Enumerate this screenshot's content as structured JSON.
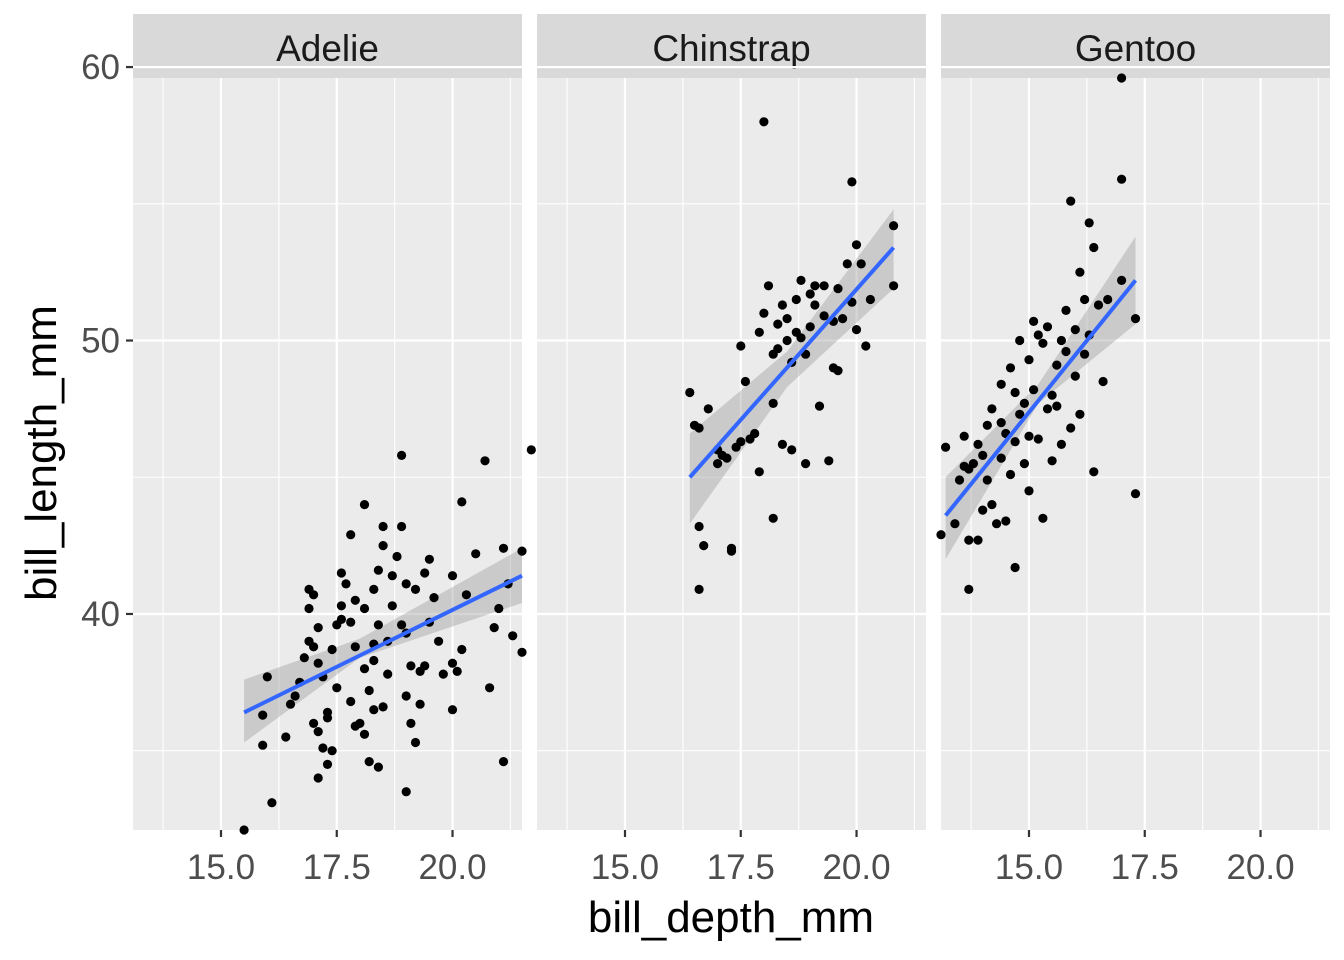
{
  "chart_data": {
    "type": "scatter",
    "xlabel": "bill_depth_mm",
    "ylabel": "bill_length_mm",
    "xlim": [
      13.1,
      21.5
    ],
    "ylim": [
      32.1,
      59.6
    ],
    "x_ticks": [
      "15.0",
      "17.5",
      "20.0"
    ],
    "x_tick_values": [
      15.0,
      17.5,
      20.0
    ],
    "y_ticks": [
      "40",
      "50",
      "60"
    ],
    "y_tick_values": [
      40,
      50,
      60
    ],
    "grid": true,
    "smooth": "lm",
    "colors": {
      "points": "#000000",
      "fit": "#3366FF",
      "band": "#999999",
      "panel": "#EBEBEB",
      "strip": "#D9D9D9"
    },
    "facets": [
      {
        "name": "Adelie",
        "fit": {
          "x": [
            15.5,
            21.5
          ],
          "y": [
            36.4,
            41.4
          ]
        },
        "band": {
          "x": [
            15.5,
            18.0,
            21.5
          ],
          "upper": [
            37.6,
            39.1,
            42.4
          ],
          "lower": [
            35.3,
            38.4,
            40.4
          ]
        },
        "points": [
          [
            15.5,
            32.1
          ],
          [
            16.1,
            33.1
          ],
          [
            15.9,
            35.2
          ],
          [
            16.4,
            35.5
          ],
          [
            15.9,
            36.3
          ],
          [
            16.0,
            37.7
          ],
          [
            16.6,
            37.0
          ],
          [
            16.7,
            37.5
          ],
          [
            16.8,
            38.4
          ],
          [
            16.9,
            39.0
          ],
          [
            16.9,
            40.2
          ],
          [
            17.0,
            40.7
          ],
          [
            16.9,
            40.9
          ],
          [
            17.1,
            39.5
          ],
          [
            17.1,
            38.2
          ],
          [
            17.2,
            37.7
          ],
          [
            17.3,
            36.2
          ],
          [
            17.0,
            36.0
          ],
          [
            17.1,
            35.7
          ],
          [
            17.2,
            35.1
          ],
          [
            17.4,
            35.0
          ],
          [
            17.1,
            34.0
          ],
          [
            17.3,
            34.5
          ],
          [
            17.3,
            36.4
          ],
          [
            17.5,
            37.3
          ],
          [
            17.4,
            38.7
          ],
          [
            17.5,
            39.6
          ],
          [
            17.6,
            40.3
          ],
          [
            17.7,
            41.1
          ],
          [
            17.6,
            41.5
          ],
          [
            17.8,
            42.9
          ],
          [
            17.8,
            39.7
          ],
          [
            17.9,
            38.8
          ],
          [
            17.8,
            36.8
          ],
          [
            18.0,
            36.0
          ],
          [
            17.9,
            35.9
          ],
          [
            18.1,
            35.6
          ],
          [
            18.2,
            34.6
          ],
          [
            18.3,
            36.5
          ],
          [
            18.2,
            37.2
          ],
          [
            18.1,
            38.0
          ],
          [
            18.3,
            38.9
          ],
          [
            18.4,
            39.6
          ],
          [
            18.1,
            40.2
          ],
          [
            18.3,
            40.9
          ],
          [
            18.4,
            41.6
          ],
          [
            18.5,
            42.5
          ],
          [
            18.5,
            43.2
          ],
          [
            18.1,
            44.0
          ],
          [
            18.4,
            34.4
          ],
          [
            18.5,
            36.6
          ],
          [
            18.6,
            37.8
          ],
          [
            18.6,
            39.0
          ],
          [
            18.7,
            40.3
          ],
          [
            18.7,
            41.4
          ],
          [
            18.8,
            42.1
          ],
          [
            18.9,
            43.2
          ],
          [
            18.9,
            45.8
          ],
          [
            19.0,
            41.1
          ],
          [
            19.0,
            39.3
          ],
          [
            19.1,
            38.1
          ],
          [
            19.0,
            37.0
          ],
          [
            19.1,
            36.0
          ],
          [
            19.2,
            35.3
          ],
          [
            19.0,
            33.5
          ],
          [
            19.3,
            36.7
          ],
          [
            19.3,
            37.9
          ],
          [
            19.4,
            38.1
          ],
          [
            19.5,
            39.7
          ],
          [
            19.6,
            40.6
          ],
          [
            19.4,
            41.5
          ],
          [
            19.5,
            42.0
          ],
          [
            19.7,
            39.0
          ],
          [
            19.8,
            37.8
          ],
          [
            20.0,
            36.5
          ],
          [
            20.1,
            37.9
          ],
          [
            20.0,
            38.2
          ],
          [
            20.2,
            38.7
          ],
          [
            20.3,
            40.7
          ],
          [
            20.0,
            41.4
          ],
          [
            20.2,
            44.1
          ],
          [
            20.7,
            45.6
          ],
          [
            20.8,
            37.3
          ],
          [
            20.9,
            39.5
          ],
          [
            21.0,
            40.2
          ],
          [
            21.1,
            42.4
          ],
          [
            21.2,
            41.1
          ],
          [
            21.3,
            39.2
          ],
          [
            21.5,
            38.6
          ],
          [
            21.1,
            34.6
          ],
          [
            21.5,
            42.3
          ],
          [
            21.7,
            46.0
          ],
          [
            16.5,
            36.7
          ],
          [
            17.9,
            40.5
          ],
          [
            18.3,
            38.3
          ],
          [
            19.2,
            40.9
          ],
          [
            17.6,
            39.8
          ],
          [
            18.9,
            39.6
          ],
          [
            20.5,
            42.2
          ],
          [
            17.0,
            38.8
          ]
        ]
      },
      {
        "name": "Chinstrap",
        "fit": {
          "x": [
            16.4,
            20.8
          ],
          "y": [
            45.0,
            53.4
          ]
        },
        "band": {
          "x": [
            16.4,
            18.5,
            20.8
          ],
          "upper": [
            46.6,
            49.6,
            54.8
          ],
          "lower": [
            43.3,
            48.3,
            51.9
          ]
        },
        "points": [
          [
            16.4,
            48.1
          ],
          [
            16.5,
            46.9
          ],
          [
            16.6,
            46.8
          ],
          [
            16.6,
            43.2
          ],
          [
            16.7,
            42.5
          ],
          [
            16.6,
            40.9
          ],
          [
            16.8,
            47.5
          ],
          [
            17.0,
            45.5
          ],
          [
            17.1,
            45.8
          ],
          [
            17.2,
            45.7
          ],
          [
            17.3,
            42.4
          ],
          [
            17.3,
            42.3
          ],
          [
            17.4,
            46.1
          ],
          [
            17.5,
            46.3
          ],
          [
            17.5,
            49.8
          ],
          [
            17.6,
            48.5
          ],
          [
            17.7,
            46.4
          ],
          [
            17.8,
            46.6
          ],
          [
            17.9,
            45.2
          ],
          [
            17.9,
            50.3
          ],
          [
            18.0,
            51.0
          ],
          [
            18.1,
            52.0
          ],
          [
            18.0,
            58.0
          ],
          [
            18.2,
            43.5
          ],
          [
            18.2,
            49.5
          ],
          [
            18.3,
            49.7
          ],
          [
            18.3,
            50.6
          ],
          [
            18.4,
            51.3
          ],
          [
            18.4,
            46.2
          ],
          [
            18.5,
            50.8
          ],
          [
            18.6,
            49.2
          ],
          [
            18.6,
            46.0
          ],
          [
            18.7,
            50.3
          ],
          [
            18.7,
            51.5
          ],
          [
            18.8,
            52.2
          ],
          [
            18.8,
            50.1
          ],
          [
            18.9,
            45.5
          ],
          [
            18.9,
            49.5
          ],
          [
            19.0,
            50.5
          ],
          [
            19.0,
            51.7
          ],
          [
            19.1,
            52.0
          ],
          [
            19.1,
            51.3
          ],
          [
            19.2,
            47.6
          ],
          [
            19.3,
            50.9
          ],
          [
            19.4,
            45.6
          ],
          [
            19.5,
            50.7
          ],
          [
            19.5,
            49.0
          ],
          [
            19.6,
            48.9
          ],
          [
            19.6,
            51.9
          ],
          [
            19.7,
            50.8
          ],
          [
            19.8,
            52.8
          ],
          [
            19.9,
            55.8
          ],
          [
            19.9,
            51.4
          ],
          [
            20.0,
            53.5
          ],
          [
            20.0,
            50.4
          ],
          [
            20.1,
            52.8
          ],
          [
            20.2,
            49.8
          ],
          [
            20.3,
            51.5
          ],
          [
            20.8,
            52.0
          ],
          [
            20.8,
            54.2
          ],
          [
            18.5,
            50.0
          ],
          [
            17.0,
            46.0
          ],
          [
            19.3,
            52.0
          ],
          [
            18.2,
            47.7
          ]
        ]
      },
      {
        "name": "Gentoo",
        "fit": {
          "x": [
            13.2,
            17.3
          ],
          "y": [
            43.6,
            52.2
          ]
        },
        "band": {
          "x": [
            13.2,
            15.2,
            17.3
          ],
          "upper": [
            45.0,
            48.4,
            53.8
          ],
          "lower": [
            42.0,
            47.7,
            50.6
          ]
        },
        "points": [
          [
            13.1,
            42.9
          ],
          [
            13.2,
            46.1
          ],
          [
            13.4,
            43.3
          ],
          [
            13.5,
            44.9
          ],
          [
            13.6,
            46.5
          ],
          [
            13.7,
            45.3
          ],
          [
            13.7,
            42.7
          ],
          [
            13.7,
            40.9
          ],
          [
            13.8,
            45.5
          ],
          [
            13.9,
            42.7
          ],
          [
            14.0,
            43.8
          ],
          [
            14.0,
            45.8
          ],
          [
            14.1,
            46.9
          ],
          [
            14.2,
            47.5
          ],
          [
            14.2,
            44.0
          ],
          [
            14.3,
            43.3
          ],
          [
            14.4,
            45.7
          ],
          [
            14.4,
            48.4
          ],
          [
            14.5,
            46.6
          ],
          [
            14.5,
            43.4
          ],
          [
            14.6,
            49.0
          ],
          [
            14.6,
            45.1
          ],
          [
            14.7,
            46.3
          ],
          [
            14.7,
            41.7
          ],
          [
            14.8,
            47.3
          ],
          [
            14.8,
            50.0
          ],
          [
            14.9,
            45.5
          ],
          [
            14.9,
            47.7
          ],
          [
            15.0,
            46.5
          ],
          [
            15.0,
            49.3
          ],
          [
            15.1,
            50.7
          ],
          [
            15.1,
            48.2
          ],
          [
            15.2,
            50.2
          ],
          [
            15.2,
            46.4
          ],
          [
            15.3,
            43.5
          ],
          [
            15.3,
            49.9
          ],
          [
            15.4,
            47.5
          ],
          [
            15.4,
            50.5
          ],
          [
            15.5,
            45.6
          ],
          [
            15.5,
            48.0
          ],
          [
            15.6,
            49.1
          ],
          [
            15.7,
            50.0
          ],
          [
            15.7,
            46.2
          ],
          [
            15.8,
            51.1
          ],
          [
            15.8,
            49.6
          ],
          [
            15.9,
            46.8
          ],
          [
            15.9,
            55.1
          ],
          [
            16.0,
            48.7
          ],
          [
            16.0,
            50.4
          ],
          [
            16.1,
            52.5
          ],
          [
            16.1,
            47.3
          ],
          [
            16.2,
            51.5
          ],
          [
            16.2,
            49.5
          ],
          [
            16.3,
            50.2
          ],
          [
            16.3,
            54.3
          ],
          [
            16.4,
            45.2
          ],
          [
            16.4,
            53.4
          ],
          [
            16.5,
            51.3
          ],
          [
            16.6,
            48.5
          ],
          [
            17.0,
            52.2
          ],
          [
            17.0,
            55.9
          ],
          [
            17.0,
            59.6
          ],
          [
            17.3,
            50.8
          ],
          [
            17.3,
            44.4
          ],
          [
            13.6,
            45.4
          ],
          [
            14.1,
            44.9
          ],
          [
            15.0,
            44.5
          ],
          [
            14.4,
            47.0
          ],
          [
            15.6,
            47.6
          ],
          [
            14.7,
            48.1
          ],
          [
            13.9,
            46.2
          ],
          [
            16.7,
            51.5
          ]
        ]
      }
    ]
  }
}
